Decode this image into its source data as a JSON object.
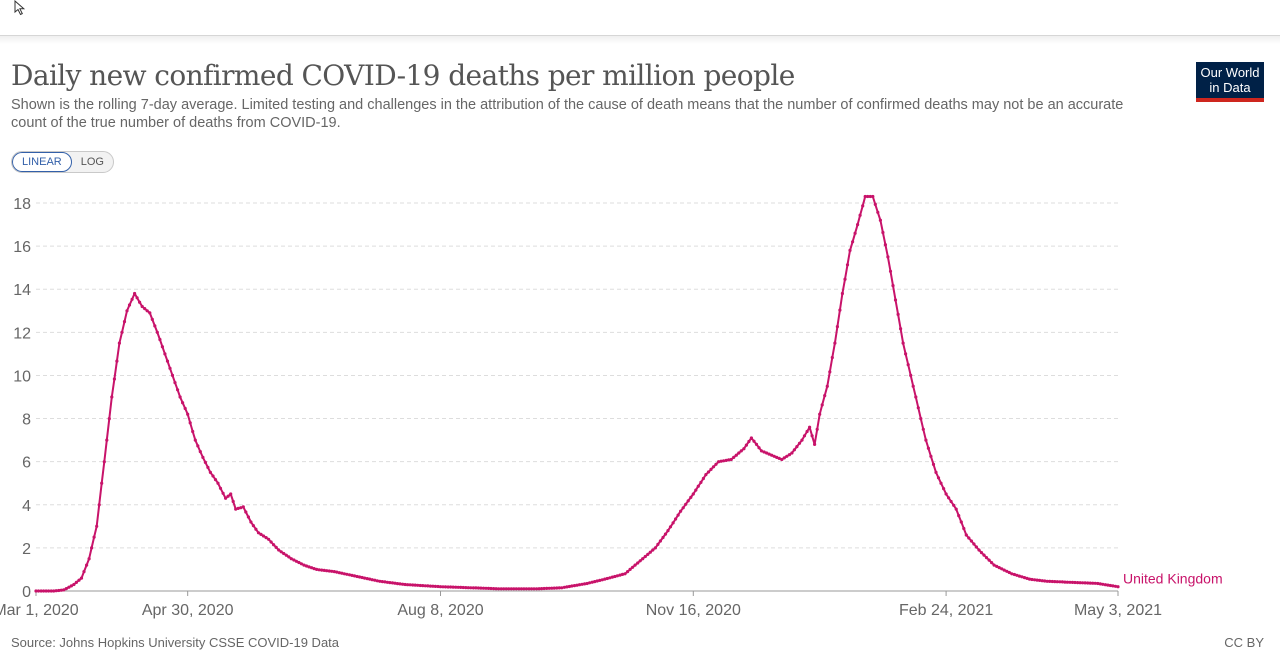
{
  "header": {
    "title": "Daily new confirmed COVID-19 deaths per million people",
    "subtitle": "Shown is the rolling 7-day average. Limited testing and challenges in the attribution of the cause of death means that the number of confirmed deaths may not be an accurate count of the true number of deaths from COVID-19."
  },
  "logo": {
    "line1": "Our World",
    "line2": "in Data"
  },
  "controls": {
    "linear_label": "LINEAR",
    "log_label": "LOG",
    "active": "LINEAR"
  },
  "footer": {
    "source": "Source: Johns Hopkins University CSSE COVID-19 Data",
    "license": "CC BY"
  },
  "colors": {
    "series": "#c8136a",
    "grid": "#dddddd",
    "logo_bg": "#002147",
    "logo_accent": "#ce261e"
  },
  "chart_data": {
    "type": "line",
    "title": "Daily new confirmed COVID-19 deaths per million people",
    "xlabel": "",
    "ylabel": "",
    "ylim": [
      0,
      18
    ],
    "yticks": [
      0,
      2,
      4,
      6,
      8,
      10,
      12,
      14,
      16,
      18
    ],
    "x_tick_labels": [
      "Mar 1, 2020",
      "Apr 30, 2020",
      "Aug 8, 2020",
      "Nov 16, 2020",
      "Feb 24, 2021",
      "May 3, 2021"
    ],
    "grid": true,
    "series": [
      {
        "name": "United Kingdom",
        "color": "#c8136a",
        "points": [
          [
            "2020-03-01",
            0
          ],
          [
            "2020-03-08",
            0
          ],
          [
            "2020-03-12",
            0.05
          ],
          [
            "2020-03-16",
            0.3
          ],
          [
            "2020-03-19",
            0.6
          ],
          [
            "2020-03-22",
            1.5
          ],
          [
            "2020-03-25",
            3.0
          ],
          [
            "2020-03-28",
            6.0
          ],
          [
            "2020-03-31",
            9.0
          ],
          [
            "2020-04-03",
            11.5
          ],
          [
            "2020-04-06",
            13.0
          ],
          [
            "2020-04-09",
            13.8
          ],
          [
            "2020-04-12",
            13.2
          ],
          [
            "2020-04-15",
            12.9
          ],
          [
            "2020-04-18",
            12.0
          ],
          [
            "2020-04-21",
            11.0
          ],
          [
            "2020-04-24",
            10.0
          ],
          [
            "2020-04-27",
            9.0
          ],
          [
            "2020-04-30",
            8.2
          ],
          [
            "2020-05-03",
            7.0
          ],
          [
            "2020-05-06",
            6.2
          ],
          [
            "2020-05-09",
            5.5
          ],
          [
            "2020-05-12",
            5.0
          ],
          [
            "2020-05-15",
            4.3
          ],
          [
            "2020-05-17",
            4.5
          ],
          [
            "2020-05-19",
            3.8
          ],
          [
            "2020-05-22",
            3.9
          ],
          [
            "2020-05-25",
            3.2
          ],
          [
            "2020-05-28",
            2.7
          ],
          [
            "2020-06-01",
            2.4
          ],
          [
            "2020-06-05",
            1.9
          ],
          [
            "2020-06-10",
            1.5
          ],
          [
            "2020-06-15",
            1.2
          ],
          [
            "2020-06-20",
            1.0
          ],
          [
            "2020-06-27",
            0.9
          ],
          [
            "2020-07-05",
            0.7
          ],
          [
            "2020-07-15",
            0.45
          ],
          [
            "2020-07-25",
            0.3
          ],
          [
            "2020-08-08",
            0.2
          ],
          [
            "2020-08-20",
            0.15
          ],
          [
            "2020-09-01",
            0.1
          ],
          [
            "2020-09-15",
            0.1
          ],
          [
            "2020-09-25",
            0.15
          ],
          [
            "2020-10-05",
            0.35
          ],
          [
            "2020-10-12",
            0.55
          ],
          [
            "2020-10-20",
            0.8
          ],
          [
            "2020-10-26",
            1.4
          ],
          [
            "2020-11-01",
            2.0
          ],
          [
            "2020-11-06",
            2.8
          ],
          [
            "2020-11-11",
            3.7
          ],
          [
            "2020-11-16",
            4.5
          ],
          [
            "2020-11-21",
            5.4
          ],
          [
            "2020-11-26",
            6.0
          ],
          [
            "2020-12-01",
            6.1
          ],
          [
            "2020-12-06",
            6.6
          ],
          [
            "2020-12-09",
            7.1
          ],
          [
            "2020-12-13",
            6.5
          ],
          [
            "2020-12-17",
            6.3
          ],
          [
            "2020-12-21",
            6.1
          ],
          [
            "2020-12-25",
            6.4
          ],
          [
            "2020-12-29",
            7.0
          ],
          [
            "2021-01-01",
            7.6
          ],
          [
            "2021-01-03",
            6.8
          ],
          [
            "2021-01-05",
            8.2
          ],
          [
            "2021-01-08",
            9.5
          ],
          [
            "2021-01-11",
            11.5
          ],
          [
            "2021-01-14",
            13.8
          ],
          [
            "2021-01-17",
            15.8
          ],
          [
            "2021-01-20",
            17.0
          ],
          [
            "2021-01-23",
            18.3
          ],
          [
            "2021-01-26",
            18.3
          ],
          [
            "2021-01-29",
            17.2
          ],
          [
            "2021-02-01",
            15.5
          ],
          [
            "2021-02-04",
            13.5
          ],
          [
            "2021-02-07",
            11.5
          ],
          [
            "2021-02-10",
            10.0
          ],
          [
            "2021-02-13",
            8.5
          ],
          [
            "2021-02-16",
            7.0
          ],
          [
            "2021-02-20",
            5.5
          ],
          [
            "2021-02-24",
            4.5
          ],
          [
            "2021-02-28",
            3.8
          ],
          [
            "2021-03-04",
            2.6
          ],
          [
            "2021-03-09",
            1.9
          ],
          [
            "2021-03-15",
            1.2
          ],
          [
            "2021-03-22",
            0.8
          ],
          [
            "2021-03-29",
            0.55
          ],
          [
            "2021-04-05",
            0.45
          ],
          [
            "2021-04-15",
            0.4
          ],
          [
            "2021-04-25",
            0.35
          ],
          [
            "2021-05-03",
            0.2
          ]
        ]
      }
    ]
  }
}
